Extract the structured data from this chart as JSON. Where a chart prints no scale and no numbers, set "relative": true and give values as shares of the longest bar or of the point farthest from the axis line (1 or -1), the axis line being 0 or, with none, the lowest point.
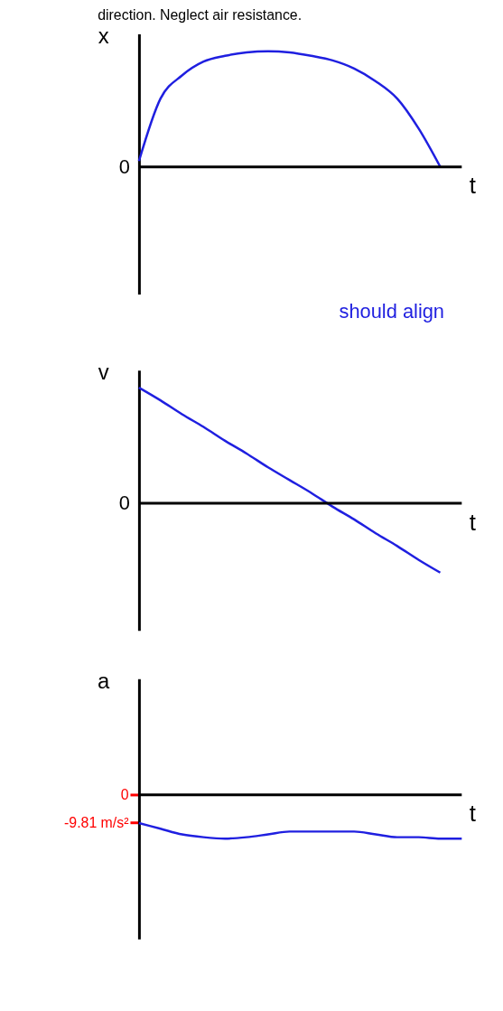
{
  "chart_data": [
    {
      "type": "line",
      "title": "direction. Neglect air resistance.",
      "ylabel": "x",
      "xlabel": "t",
      "relative": true,
      "categories": [
        null,
        null,
        null,
        null,
        null,
        null,
        null,
        null,
        null,
        null,
        null,
        null,
        null,
        null,
        null,
        null
      ],
      "series": [
        {
          "color": "#1f1fe0",
          "values": [
            0.05,
            0.59,
            0.79,
            0.91,
            0.96,
            0.99,
            1.0,
            0.99,
            0.96,
            0.92,
            0.85,
            0.74,
            0.59,
            0.33,
            0,
            null
          ]
        }
      ],
      "ref_lines": [
        {
          "axis": "y",
          "value": 0,
          "label": "0"
        }
      ],
      "annotations": [
        "should align"
      ]
    },
    {
      "type": "line",
      "ylabel": "v",
      "xlabel": "t",
      "relative": true,
      "categories": [
        null,
        null,
        null,
        null,
        null,
        null,
        null,
        null,
        null,
        null,
        null,
        null,
        null,
        null,
        null,
        null
      ],
      "series": [
        {
          "color": "#1f1fe0",
          "values": [
            1.0,
            0.89,
            0.77,
            0.66,
            0.54,
            0.43,
            0.31,
            0.2,
            0.09,
            -0.03,
            -0.14,
            -0.26,
            -0.37,
            -0.49,
            -0.6,
            null
          ]
        }
      ],
      "ref_lines": [
        {
          "axis": "y",
          "value": 0,
          "label": "0"
        }
      ]
    },
    {
      "type": "line",
      "ylabel": "a",
      "xlabel": "t",
      "ylim": [
        -51,
        41
      ],
      "ref_lines": [
        {
          "axis": "y",
          "value": 0
        }
      ],
      "yticks": [
        0,
        {
          "value": -9.81,
          "label": "-9.81 m/s²"
        }
      ],
      "categories": [
        null,
        null,
        null,
        null,
        null,
        null,
        null,
        null,
        null,
        null,
        null,
        null,
        null,
        null,
        null,
        null
      ],
      "series": [
        {
          "color": "#1f1fe0",
          "values": [
            -10,
            -12,
            -14,
            -15,
            -15.5,
            -15,
            -14,
            -13,
            -13,
            -13,
            -13,
            -14,
            -15,
            -15,
            -15.5,
            -15.5
          ]
        }
      ]
    }
  ]
}
